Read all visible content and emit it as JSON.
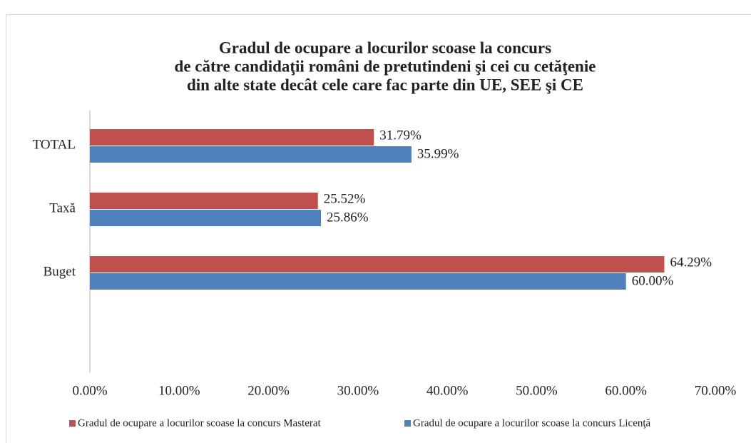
{
  "chart_data": {
    "type": "hbar",
    "title": [
      "Gradul de ocupare a locurilor scoase la concurs",
      "de către candidaţii români de pretutindeni şi cei cu cetăţenie",
      "din alte state decât cele care fac parte din UE, SEE şi CE"
    ],
    "categories": [
      "TOTAL",
      "Taxă",
      "Buget"
    ],
    "series": [
      {
        "name": "Gradul de ocupare a locurilor scoase la  concurs Masterat",
        "color": "#c0504d",
        "values": [
          31.79,
          25.52,
          64.29
        ],
        "value_labels": [
          "31.79%",
          "25.52%",
          "64.29%"
        ]
      },
      {
        "name": "Gradul de ocupare a locurilor scoase la  concurs Licenţă",
        "color": "#4f81bd",
        "values": [
          35.99,
          25.86,
          60.0
        ],
        "value_labels": [
          "35.99%",
          "25.86%",
          "60.00%"
        ]
      }
    ],
    "xlim": [
      0,
      70
    ],
    "xticks": [
      {
        "value": 0,
        "label": "0.00%"
      },
      {
        "value": 10,
        "label": "10.00%"
      },
      {
        "value": 20,
        "label": "20.00%"
      },
      {
        "value": 30,
        "label": "30.00%"
      },
      {
        "value": 40,
        "label": "40.00%"
      },
      {
        "value": 50,
        "label": "50.00%"
      },
      {
        "value": 60,
        "label": "60.00%"
      },
      {
        "value": 70,
        "label": "70.00%"
      }
    ],
    "legend": "bottom"
  }
}
